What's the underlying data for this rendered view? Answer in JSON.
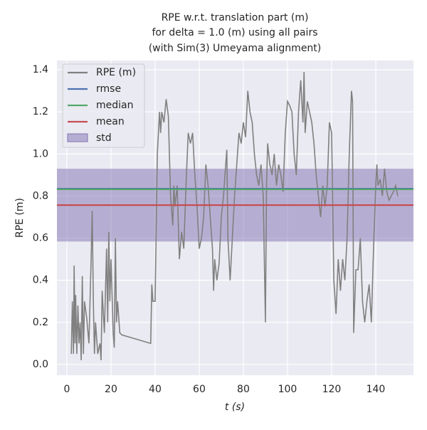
{
  "chart_data": {
    "type": "line",
    "title": [
      "RPE w.r.t. translation part (m)",
      "for delta = 1.0 (m) using all pairs",
      "(with Sim(3) Umeyama alignment)"
    ],
    "xlabel": "t (s)",
    "ylabel": "RPE (m)",
    "xlim": [
      -4.5,
      157.1
    ],
    "ylim": [
      -0.051,
      1.444
    ],
    "xticks": [
      0,
      20,
      40,
      60,
      80,
      100,
      120,
      140
    ],
    "yticks": [
      {
        "value": 0,
        "label": "0.0"
      },
      0.2,
      0.4,
      0.6,
      0.8,
      {
        "value": 1,
        "label": "1.0"
      },
      1.2,
      1.4
    ],
    "grid": true,
    "legend": "upper left",
    "x": [
      2,
      2.5,
      3,
      3.3,
      3.7,
      4,
      4.5,
      5,
      5.5,
      6,
      6.5,
      7,
      7.5,
      8,
      9,
      10,
      11,
      11.5,
      12,
      12.5,
      13,
      14,
      15,
      15.5,
      16,
      17,
      18,
      18.5,
      19,
      19.5,
      20,
      21,
      21.5,
      22,
      22.5,
      23,
      24,
      25,
      38,
      38.5,
      39,
      40,
      41,
      42,
      42.5,
      43,
      44,
      45,
      46,
      47,
      48,
      48.5,
      49,
      50,
      51,
      52,
      53,
      54,
      55,
      56,
      57,
      58,
      59,
      60,
      61,
      62,
      63,
      64,
      65,
      66,
      66.5,
      67,
      68,
      69,
      70,
      71,
      72,
      72.5,
      73,
      74,
      75,
      76,
      77,
      78,
      79,
      80,
      81,
      82,
      83,
      84,
      85,
      86,
      87,
      88,
      89,
      90,
      90.5,
      91,
      92,
      93,
      94,
      95,
      96,
      97,
      98,
      99,
      100,
      101,
      102,
      103,
      104,
      105,
      106,
      107,
      107.5,
      108,
      109,
      110,
      111,
      112,
      113,
      114,
      115,
      116,
      117,
      118,
      119,
      120,
      121,
      122,
      123,
      124,
      125,
      126,
      127,
      128,
      129,
      129.5,
      130,
      131,
      132,
      133,
      134,
      135,
      136,
      137,
      138,
      139,
      140,
      140.5,
      141,
      142,
      143,
      144,
      145,
      146,
      147,
      148,
      149,
      150
    ],
    "series": [
      {
        "name": "RPE (m)",
        "color": "#808080",
        "values": [
          0.05,
          0.3,
          0.05,
          0.47,
          0.1,
          0.33,
          0.05,
          0.28,
          0.1,
          0.2,
          0.02,
          0.42,
          0.05,
          0.3,
          0.22,
          0.1,
          0.5,
          0.73,
          0.3,
          0.05,
          0.2,
          0.05,
          0.1,
          0.02,
          0.35,
          0.15,
          0.55,
          0.2,
          0.63,
          0.3,
          0.5,
          0.15,
          0.08,
          0.6,
          0.2,
          0.3,
          0.15,
          0.14,
          0.1,
          0.38,
          0.3,
          0.3,
          1.0,
          1.2,
          1.1,
          1.2,
          1.15,
          1.26,
          1.18,
          0.8,
          0.66,
          0.85,
          0.75,
          0.85,
          0.5,
          0.63,
          0.55,
          0.85,
          1.1,
          1.05,
          1.1,
          0.9,
          0.75,
          0.55,
          0.6,
          0.7,
          0.95,
          0.85,
          0.7,
          0.55,
          0.35,
          0.5,
          0.4,
          0.48,
          0.7,
          0.8,
          0.95,
          1.02,
          0.6,
          0.4,
          0.6,
          0.8,
          0.95,
          1.1,
          1.05,
          1.15,
          1.08,
          1.3,
          1.2,
          1.15,
          1.0,
          0.9,
          0.85,
          0.95,
          0.8,
          0.2,
          0.85,
          1.05,
          0.95,
          0.9,
          1.0,
          0.85,
          0.95,
          0.9,
          0.82,
          1.1,
          1.25,
          1.23,
          1.2,
          1.0,
          0.9,
          1.2,
          1.35,
          1.15,
          1.39,
          1.1,
          1.25,
          1.2,
          1.15,
          1.05,
          0.9,
          0.8,
          0.7,
          0.85,
          0.75,
          0.85,
          1.15,
          1.1,
          0.4,
          0.24,
          0.5,
          0.35,
          0.5,
          0.4,
          0.6,
          1.0,
          1.3,
          1.25,
          0.15,
          0.45,
          0.45,
          0.6,
          0.3,
          0.2,
          0.3,
          0.38,
          0.2,
          0.55,
          0.85,
          0.95,
          0.85,
          0.88,
          0.8,
          0.93,
          0.82,
          0.78,
          0.8,
          0.82,
          0.85,
          0.8
        ]
      }
    ],
    "stats": [
      {
        "name": "rmse",
        "color": "#4c72b0",
        "value": 0.835
      },
      {
        "name": "median",
        "color": "#55a868",
        "value": 0.832
      },
      {
        "name": "mean",
        "color": "#c44e52",
        "value": 0.757
      }
    ],
    "std": {
      "name": "std",
      "color": "#8172b2",
      "value": 0.173
    }
  }
}
